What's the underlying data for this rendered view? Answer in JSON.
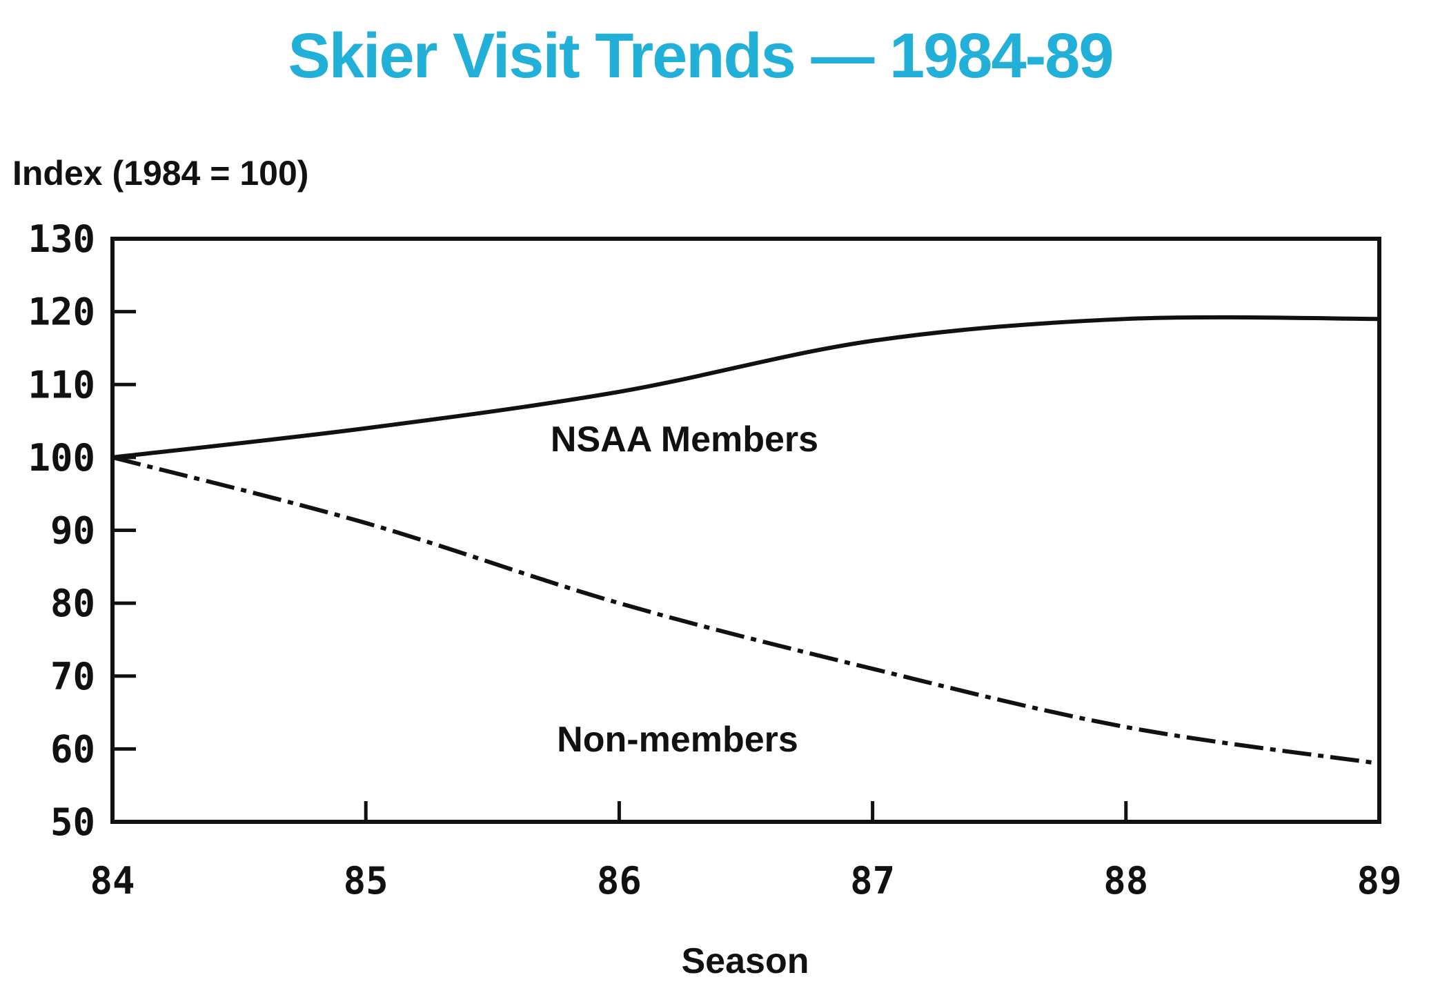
{
  "chart_data": {
    "type": "line",
    "title": "Skier Visit Trends — 1984-89",
    "ylabel": "Index (1984 = 100)",
    "xlabel": "Season",
    "x": [
      "84",
      "85",
      "86",
      "87",
      "88",
      "89"
    ],
    "yticks": [
      "130",
      "120",
      "110",
      "100",
      "90",
      "80",
      "70",
      "60",
      "50"
    ],
    "ylim": [
      50,
      130
    ],
    "grid": false,
    "series": [
      {
        "name": "NSAA Members",
        "style": "solid",
        "values": [
          100,
          104,
          109,
          116,
          119,
          119
        ]
      },
      {
        "name": "Non-members",
        "style": "dash-dot",
        "values": [
          100,
          91,
          80,
          71,
          63,
          58
        ]
      }
    ]
  },
  "colors": {
    "title": "#22b0d8",
    "ink": "#111111",
    "background": "#ffffff"
  }
}
